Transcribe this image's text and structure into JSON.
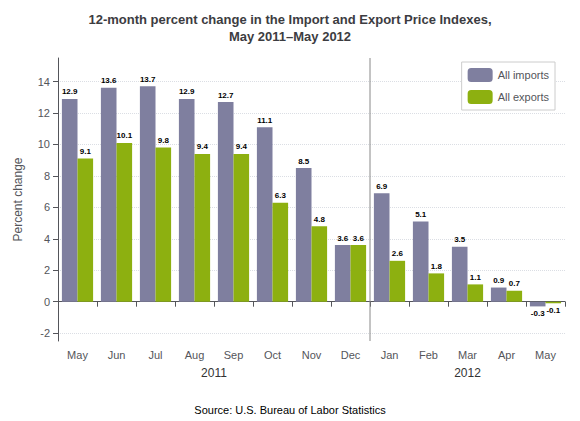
{
  "chart_data": {
    "type": "bar",
    "title": "12-month percent change in the Import and Export Price Indexes,\nMay 2011–May 2012",
    "categories": [
      "May",
      "Jun",
      "Jul",
      "Aug",
      "Sep",
      "Oct",
      "Nov",
      "Dec",
      "Jan",
      "Feb",
      "Mar",
      "Apr",
      "May"
    ],
    "series": [
      {
        "name": "All imports",
        "color": "#7f7f9f",
        "values": [
          12.9,
          13.6,
          13.7,
          12.9,
          12.7,
          11.1,
          8.5,
          3.6,
          6.9,
          5.1,
          3.5,
          0.9,
          -0.3
        ]
      },
      {
        "name": "All exports",
        "color": "#8db010",
        "values": [
          9.1,
          10.1,
          9.8,
          9.4,
          9.4,
          6.3,
          4.8,
          3.6,
          2.6,
          1.8,
          1.1,
          0.7,
          -0.1
        ]
      }
    ],
    "ylabel": "Percent change",
    "ylim": [
      -2.5,
      15.5
    ],
    "yticks": [
      -2,
      0,
      2,
      4,
      6,
      8,
      10,
      12,
      14
    ],
    "grid": true,
    "legend": "upper right",
    "data_labels": true,
    "year_groups": [
      {
        "label": "2011",
        "first": 0,
        "last": 7
      },
      {
        "label": "2012",
        "first": 8,
        "last": 12
      }
    ],
    "source": "Source: U.S. Bureau of Labor Statistics"
  }
}
